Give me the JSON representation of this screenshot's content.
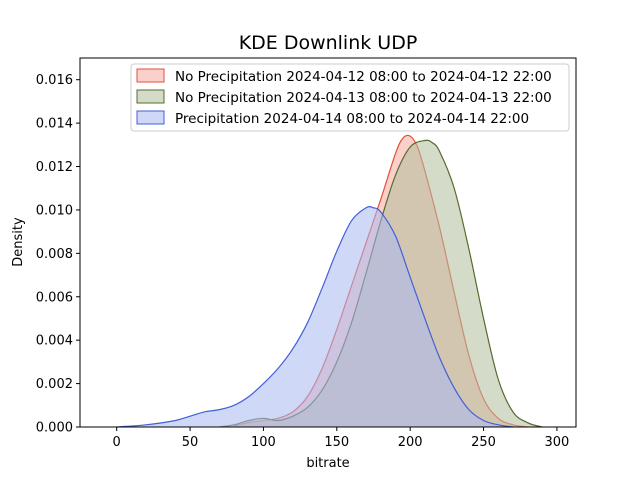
{
  "chart_data": {
    "type": "area",
    "title": "KDE Downlink UDP",
    "xlabel": "bitrate",
    "ylabel": "Density",
    "xlim": [
      -25,
      313
    ],
    "ylim": [
      0,
      0.017
    ],
    "xticks": [
      0,
      50,
      100,
      150,
      200,
      250,
      300
    ],
    "xtick_labels": [
      "0",
      "50",
      "100",
      "150",
      "200",
      "250",
      "300"
    ],
    "yticks": [
      0,
      0.002,
      0.004,
      0.006,
      0.008,
      0.01,
      0.012,
      0.014,
      0.016
    ],
    "ytick_labels": [
      "0.000",
      "0.002",
      "0.004",
      "0.006",
      "0.008",
      "0.010",
      "0.012",
      "0.014",
      "0.016"
    ],
    "grid": false,
    "legend_position": "top-right",
    "series": [
      {
        "name": "No Precipitation 2024-04-12 08:00 to 2024-04-12 22:00",
        "color": "#e0523c",
        "fill": "#f8aaa0",
        "x": [
          80,
          90,
          100,
          110,
          120,
          130,
          140,
          150,
          160,
          170,
          180,
          190,
          195,
          200,
          205,
          210,
          220,
          230,
          240,
          250,
          260,
          270,
          280
        ],
        "y": [
          5e-05,
          0.0002,
          0.0003,
          0.0004,
          0.0007,
          0.0014,
          0.0027,
          0.0045,
          0.0065,
          0.0085,
          0.0105,
          0.0126,
          0.0133,
          0.0134,
          0.0129,
          0.0118,
          0.0092,
          0.0062,
          0.0033,
          0.0013,
          0.0004,
          0.0001,
          0.0
        ]
      },
      {
        "name": "No Precipitation 2024-04-13 08:00 to 2024-04-13 22:00",
        "color": "#556b2f",
        "fill": "#b3be9c",
        "x": [
          70,
          80,
          90,
          100,
          110,
          120,
          130,
          140,
          150,
          160,
          170,
          180,
          190,
          200,
          210,
          215,
          220,
          230,
          240,
          250,
          260,
          270,
          280,
          290
        ],
        "y": [
          0.0,
          0.0001,
          0.0003,
          0.0004,
          0.0003,
          0.0005,
          0.0009,
          0.0017,
          0.003,
          0.0048,
          0.0071,
          0.0095,
          0.0116,
          0.0129,
          0.0132,
          0.0131,
          0.0127,
          0.011,
          0.0082,
          0.005,
          0.0022,
          0.0007,
          0.0002,
          0.0
        ]
      },
      {
        "name": "Precipitation 2024-04-14 08:00 to 2024-04-14 22:00",
        "color": "#4060d8",
        "fill": "#aab8f2",
        "x": [
          0,
          20,
          40,
          50,
          60,
          70,
          80,
          90,
          100,
          110,
          120,
          130,
          140,
          150,
          160,
          170,
          175,
          180,
          190,
          200,
          210,
          220,
          230,
          240,
          250,
          260,
          270
        ],
        "y": [
          0.0,
          0.0001,
          0.0003,
          0.0005,
          0.0007,
          0.0008,
          0.001,
          0.0014,
          0.002,
          0.0027,
          0.0036,
          0.0048,
          0.0064,
          0.0081,
          0.0095,
          0.0101,
          0.0101,
          0.0099,
          0.0088,
          0.0069,
          0.005,
          0.0032,
          0.0018,
          0.0008,
          0.0003,
          0.0001,
          0.0
        ]
      }
    ]
  }
}
